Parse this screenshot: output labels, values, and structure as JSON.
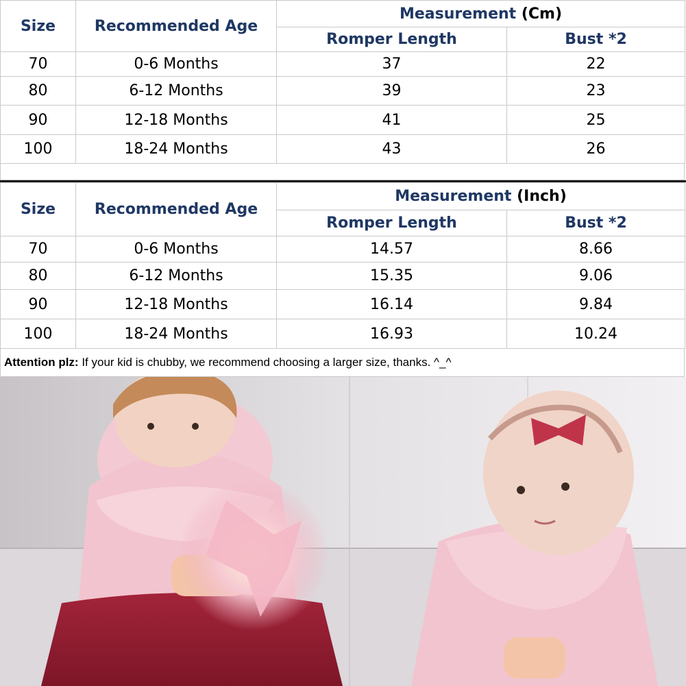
{
  "cm_table": {
    "headers": {
      "size": "Size",
      "age": "Recommended Age",
      "measurement": "Measurement",
      "unit": "(Cm)",
      "length": "Romper Length",
      "bust": "Bust *2"
    },
    "rows": [
      {
        "size": "70",
        "age": "0-6 Months",
        "length": "37",
        "bust": "22"
      },
      {
        "size": "80",
        "age": "6-12 Months",
        "length": "39",
        "bust": "23"
      },
      {
        "size": "90",
        "age": "12-18 Months",
        "length": "41",
        "bust": "25"
      },
      {
        "size": "100",
        "age": "18-24 Months",
        "length": "43",
        "bust": "26"
      }
    ]
  },
  "inch_table": {
    "headers": {
      "size": "Size",
      "age": "Recommended Age",
      "measurement": "Measurement",
      "unit": "(Inch)",
      "length": "Romper Length",
      "bust": "Bust *2"
    },
    "rows": [
      {
        "size": "70",
        "age": "0-6 Months",
        "length": "14.57",
        "bust": "8.66"
      },
      {
        "size": "80",
        "age": "6-12 Months",
        "length": "15.35",
        "bust": "9.06"
      },
      {
        "size": "90",
        "age": "12-18 Months",
        "length": "16.14",
        "bust": "9.84"
      },
      {
        "size": "100",
        "age": "18-24 Months",
        "length": "16.93",
        "bust": "10.24"
      }
    ]
  },
  "note": {
    "label": "Attention plz:",
    "text": " If your kid is chubby, we recommend choosing a larger size, thanks. ^_^"
  },
  "colors": {
    "header_text": "#1f3864",
    "grid": "#c9c9c9",
    "divider": "#1a1a1a"
  }
}
